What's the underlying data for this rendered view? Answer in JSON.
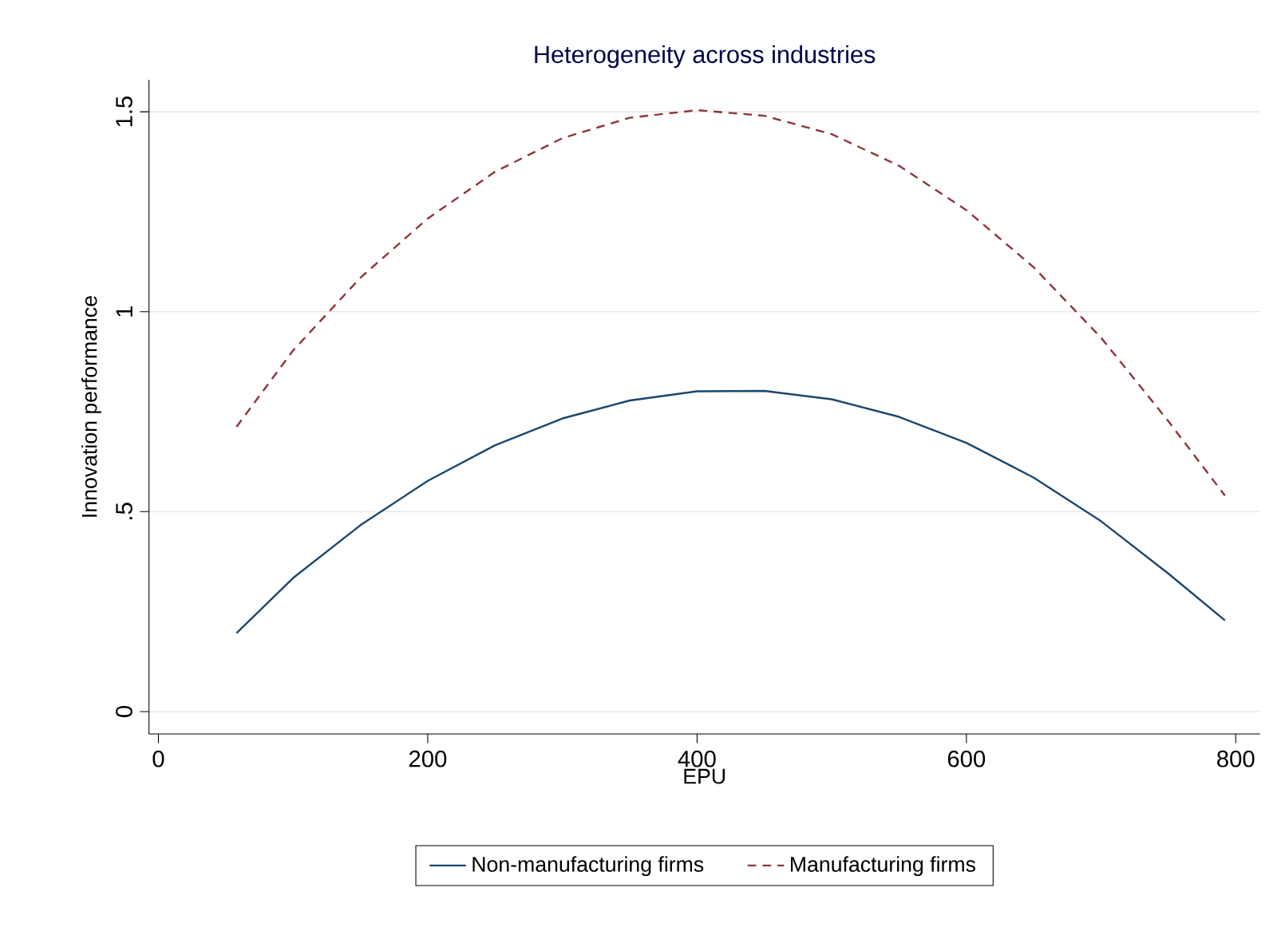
{
  "chart_data": {
    "type": "line",
    "title": "Heterogeneity across industries",
    "xlabel": "EPU",
    "ylabel": "Innovation performance",
    "x": [
      58,
      100,
      150,
      200,
      250,
      300,
      350,
      400,
      450,
      500,
      550,
      600,
      650,
      700,
      750,
      792
    ],
    "series": [
      {
        "name": "Non-manufacturing firms",
        "color": "#1a476f",
        "line_style": "solid",
        "values": [
          0.196,
          0.334,
          0.466,
          0.577,
          0.666,
          0.733,
          0.778,
          0.801,
          0.802,
          0.781,
          0.737,
          0.672,
          0.585,
          0.476,
          0.345,
          0.228
        ]
      },
      {
        "name": "Manufacturing firms",
        "color": "#90353b",
        "line_style": "dashed",
        "values": [
          0.712,
          0.903,
          1.085,
          1.233,
          1.35,
          1.434,
          1.485,
          1.504,
          1.49,
          1.444,
          1.365,
          1.254,
          1.111,
          0.935,
          0.726,
          0.54
        ]
      }
    ],
    "xlim": [
      -7,
      818
    ],
    "ylim": [
      -0.056,
      1.58
    ],
    "xticks": [
      0,
      200,
      400,
      600,
      800
    ],
    "yticks": [
      0,
      {
        "value": 0.5,
        "label": ".5"
      },
      1,
      1.5
    ],
    "grid": "y",
    "legend": "bottom",
    "marker": "none"
  }
}
